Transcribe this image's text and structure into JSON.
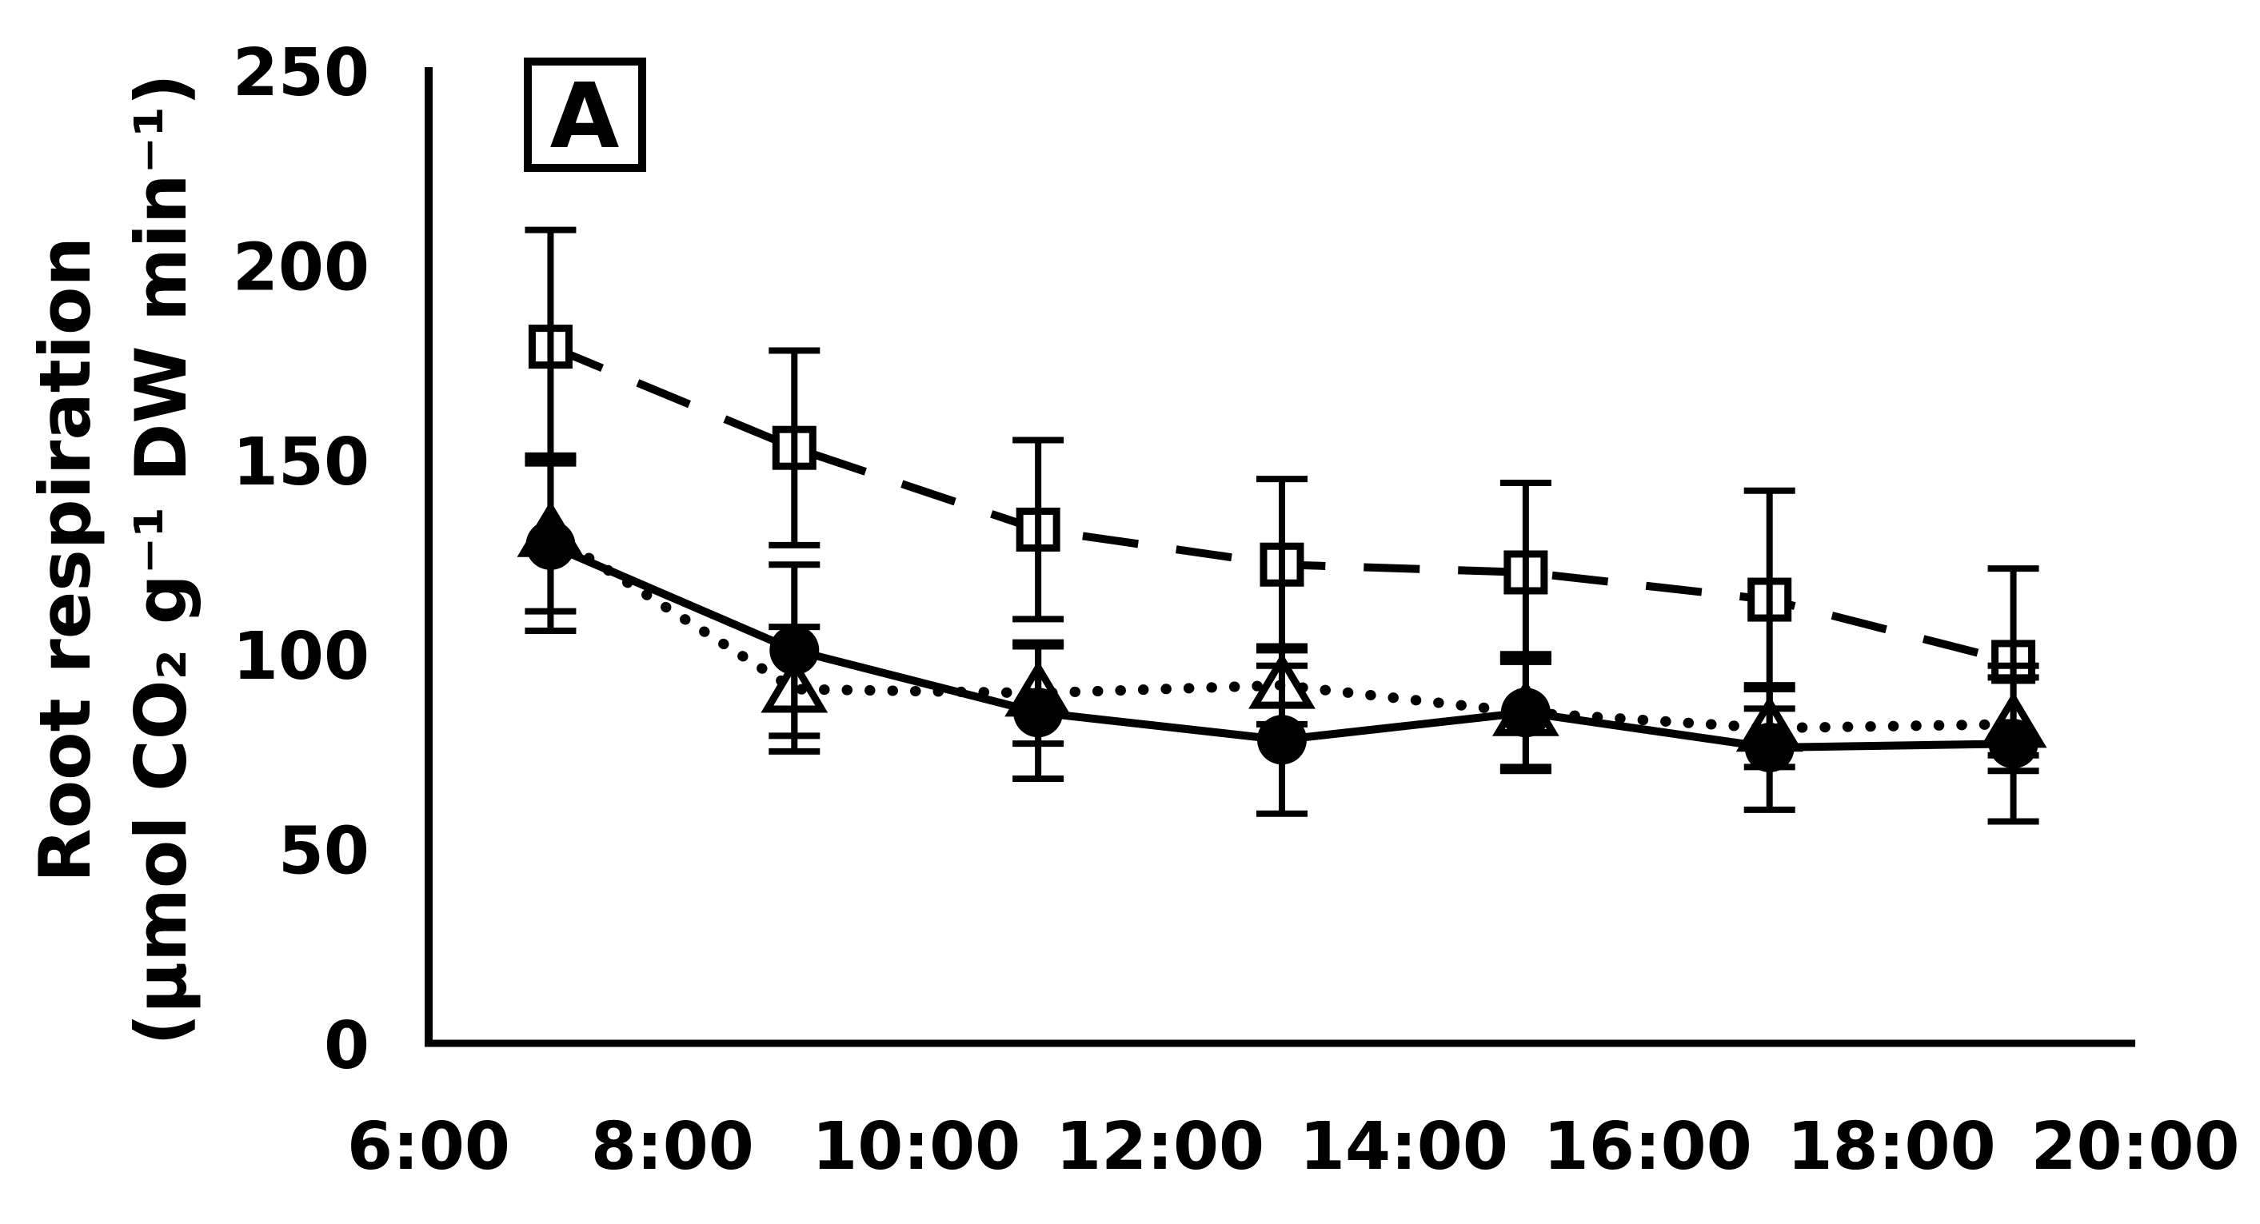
{
  "chart_data": {
    "type": "line",
    "title": "",
    "panel_label": "A",
    "ylabel_line1": "Root respiration",
    "ylabel_line2": "(µmol CO₂ g⁻¹ DW min⁻¹)",
    "xlabel": "",
    "x_labels": [
      "7:00",
      "9:00",
      "11:00",
      "13:00",
      "15:00",
      "17:00",
      "19:00"
    ],
    "x_hours": [
      7,
      9,
      11,
      13,
      15,
      17,
      19
    ],
    "xticks": [
      "6:00",
      "8:00",
      "10:00",
      "12:00",
      "14:00",
      "16:00",
      "18:00",
      "20:00"
    ],
    "xtick_hours": [
      6,
      8,
      10,
      12,
      14,
      16,
      18,
      20
    ],
    "yticks": [
      250,
      200,
      150,
      100,
      50,
      0
    ],
    "ylim": [
      0,
      250
    ],
    "xlim_hours": [
      6,
      20
    ],
    "grid": false,
    "legend_position": "none",
    "series": [
      {
        "name": "open-square-dashed",
        "marker": "open-square",
        "line_style": "dashed",
        "values": [
          179,
          153,
          132,
          123,
          121,
          114,
          98
        ],
        "errors": [
          30,
          25,
          23,
          22,
          23,
          28,
          24
        ]
      },
      {
        "name": "open-triangle-dotted",
        "marker": "open-triangle",
        "line_style": "dotted",
        "values": [
          131,
          91,
          90,
          92,
          85,
          81,
          82
        ],
        "errors": [
          20,
          16,
          13,
          10,
          14,
          10,
          12
        ]
      },
      {
        "name": "filled-circle-solid",
        "marker": "filled-circle",
        "line_style": "solid",
        "values": [
          128,
          101,
          85,
          78,
          85,
          76,
          77
        ],
        "errors": [
          22,
          22,
          17,
          19,
          15,
          16,
          20
        ]
      }
    ],
    "colors": {
      "foreground": "#000000",
      "background": "#ffffff"
    }
  }
}
